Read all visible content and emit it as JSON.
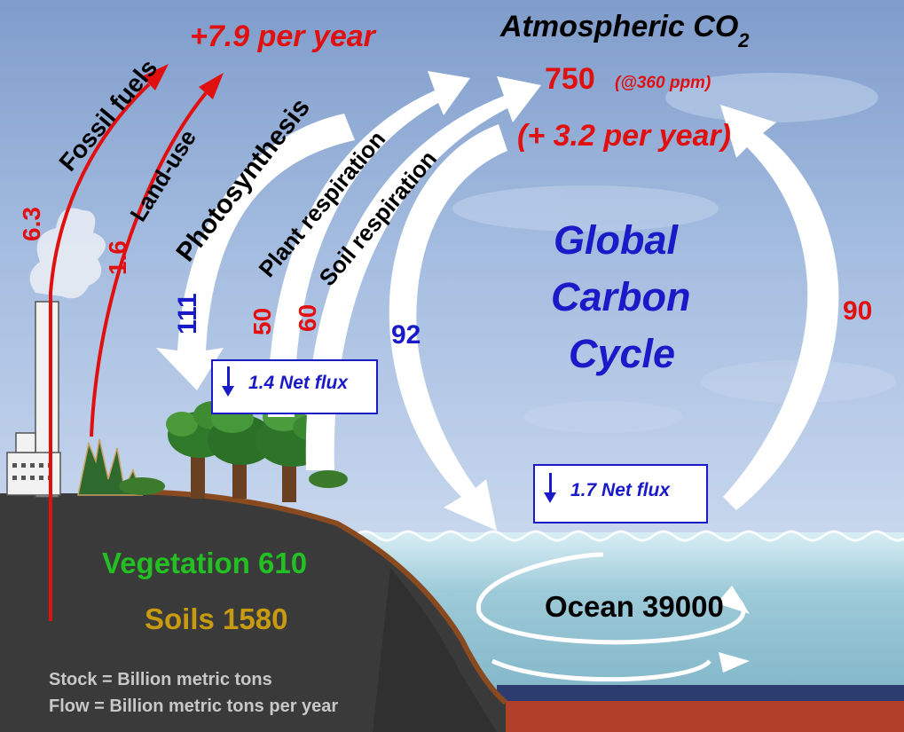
{
  "atmosphere": {
    "title": "Atmospheric CO",
    "title_subscript": "2",
    "stock": "750",
    "stock_note": "(@360 ppm)",
    "annual_change": "(+ 3.2 per year)"
  },
  "headline": {
    "line1": "Global",
    "line2": "Carbon",
    "line3": "Cycle"
  },
  "fluxes": {
    "fossil_fuels": {
      "label": "Fossil fuels",
      "value": "6.3"
    },
    "land_use": {
      "label": "Land-use",
      "value": "1.6"
    },
    "total_emissions": "+7.9 per year",
    "photosynthesis": {
      "label": "Photosynthesis",
      "value": "111"
    },
    "plant_respiration": {
      "label": "Plant respiration",
      "value": "50"
    },
    "soil_respiration": {
      "label": "Soil respiration",
      "value": "60"
    },
    "ocean_uptake": "92",
    "ocean_release": "90",
    "land_net_flux": "1.4 Net flux",
    "ocean_net_flux": "1.7 Net flux"
  },
  "stocks": {
    "vegetation": "Vegetation 610",
    "soils": "Soils 1580",
    "ocean": "Ocean 39000"
  },
  "legend": {
    "stock_unit": "Stock = Billion metric tons",
    "flow_unit": "Flow = Billion metric tons per year"
  },
  "colors": {
    "emission_red": "#e01010",
    "uptake_blue": "#1a1ac8",
    "vegetation_green": "#22c022",
    "soil_gold": "#c89a10",
    "legend_gray": "#c8c8c8"
  }
}
